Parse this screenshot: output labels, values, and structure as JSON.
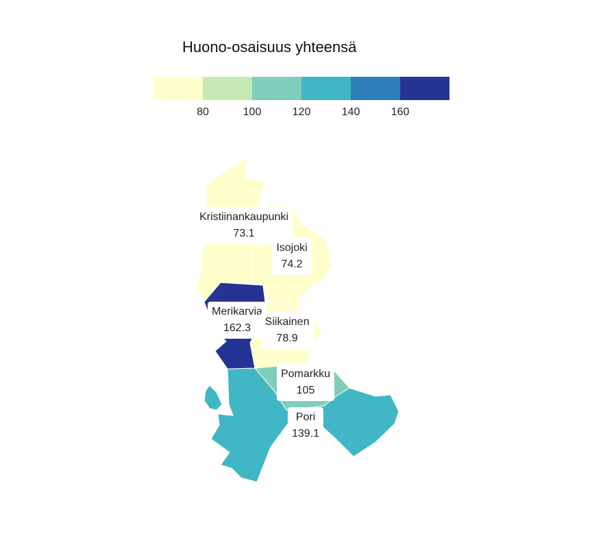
{
  "legend": {
    "title": "Huono-osaisuus yhteensä",
    "colors": [
      "#ffffcc",
      "#c7e9b4",
      "#7fcdbb",
      "#41b6c4",
      "#2c7fb8",
      "#253494"
    ],
    "ticks": [
      "80",
      "100",
      "120",
      "140",
      "160"
    ]
  },
  "regions": [
    {
      "name": "Kristiinankaupunki",
      "value": "73.1",
      "color": "#ffffcc"
    },
    {
      "name": "Isojoki",
      "value": "74.2",
      "color": "#ffffcc"
    },
    {
      "name": "Merikarvia",
      "value": "162.3",
      "color": "#253494"
    },
    {
      "name": "Siikainen",
      "value": "78.9",
      "color": "#ffffcc"
    },
    {
      "name": "Pomarkku",
      "value": "105",
      "color": "#7fcdbb"
    },
    {
      "name": "Pori",
      "value": "139.1",
      "color": "#41b6c4"
    }
  ]
}
